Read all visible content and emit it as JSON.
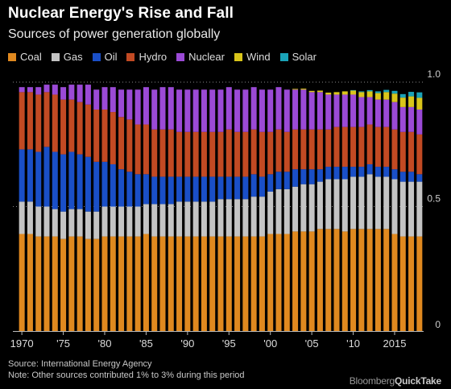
{
  "header": {
    "title": "Nuclear Energy's Rise and Fall",
    "subtitle": "Sources of power generation globally"
  },
  "footer": {
    "source": "Source: International Energy Agency",
    "note": "Note: Other sources contributed 1% to 3% during this period",
    "logo": "BloombergQuickTake"
  },
  "colors": {
    "Coal": "#e0891f",
    "Gas": "#c4c4c4",
    "Oil": "#1a4fc7",
    "Hydro": "#c24a23",
    "Nuclear": "#9b4ad6",
    "Wind": "#d9c51a",
    "Solar": "#1aa3b8"
  },
  "chart_data": {
    "type": "bar",
    "stacked": true,
    "categories": [
      1970,
      1971,
      1972,
      1973,
      1974,
      1975,
      1976,
      1977,
      1978,
      1979,
      1980,
      1981,
      1982,
      1983,
      1984,
      1985,
      1986,
      1987,
      1988,
      1989,
      1990,
      1991,
      1992,
      1993,
      1994,
      1995,
      1996,
      1997,
      1998,
      1999,
      2000,
      2001,
      2002,
      2003,
      2004,
      2005,
      2006,
      2007,
      2008,
      2009,
      2010,
      2011,
      2012,
      2013,
      2014,
      2015,
      2016,
      2017,
      2018
    ],
    "x_tick_labels": [
      "1970",
      "'75",
      "'80",
      "'85",
      "'90",
      "'95",
      "'00",
      "'05",
      "'10",
      "2015"
    ],
    "x_tick_years": [
      1970,
      1975,
      1980,
      1985,
      1990,
      1995,
      2000,
      2005,
      2010,
      2015
    ],
    "y_ticks": [
      0,
      0.5,
      1.0
    ],
    "y_tick_labels": [
      "0",
      "0.5",
      "1.0"
    ],
    "ylim": [
      0,
      1.0
    ],
    "series": [
      {
        "name": "Coal",
        "values": [
          0.39,
          0.39,
          0.38,
          0.38,
          0.38,
          0.37,
          0.38,
          0.38,
          0.37,
          0.37,
          0.38,
          0.38,
          0.38,
          0.38,
          0.38,
          0.39,
          0.38,
          0.38,
          0.38,
          0.38,
          0.38,
          0.38,
          0.38,
          0.38,
          0.38,
          0.38,
          0.38,
          0.38,
          0.38,
          0.38,
          0.39,
          0.39,
          0.39,
          0.4,
          0.4,
          0.4,
          0.41,
          0.41,
          0.41,
          0.4,
          0.41,
          0.41,
          0.41,
          0.41,
          0.41,
          0.39,
          0.38,
          0.38,
          0.38
        ]
      },
      {
        "name": "Gas",
        "values": [
          0.13,
          0.13,
          0.12,
          0.12,
          0.11,
          0.11,
          0.11,
          0.11,
          0.11,
          0.11,
          0.12,
          0.12,
          0.12,
          0.12,
          0.12,
          0.12,
          0.13,
          0.13,
          0.13,
          0.14,
          0.14,
          0.14,
          0.14,
          0.14,
          0.15,
          0.15,
          0.15,
          0.15,
          0.16,
          0.16,
          0.17,
          0.18,
          0.18,
          0.18,
          0.19,
          0.19,
          0.19,
          0.2,
          0.2,
          0.21,
          0.21,
          0.21,
          0.22,
          0.21,
          0.21,
          0.22,
          0.22,
          0.22,
          0.22
        ]
      },
      {
        "name": "Oil",
        "values": [
          0.21,
          0.21,
          0.22,
          0.24,
          0.23,
          0.23,
          0.23,
          0.22,
          0.22,
          0.2,
          0.18,
          0.17,
          0.15,
          0.14,
          0.13,
          0.12,
          0.11,
          0.11,
          0.11,
          0.1,
          0.1,
          0.1,
          0.1,
          0.1,
          0.09,
          0.09,
          0.09,
          0.09,
          0.09,
          0.08,
          0.07,
          0.07,
          0.07,
          0.07,
          0.06,
          0.06,
          0.05,
          0.05,
          0.05,
          0.05,
          0.04,
          0.04,
          0.04,
          0.04,
          0.04,
          0.04,
          0.04,
          0.04,
          0.03
        ]
      },
      {
        "name": "Hydro",
        "values": [
          0.23,
          0.23,
          0.23,
          0.22,
          0.23,
          0.22,
          0.21,
          0.21,
          0.21,
          0.21,
          0.21,
          0.21,
          0.21,
          0.21,
          0.2,
          0.2,
          0.19,
          0.19,
          0.19,
          0.18,
          0.18,
          0.18,
          0.18,
          0.18,
          0.18,
          0.19,
          0.18,
          0.18,
          0.18,
          0.18,
          0.17,
          0.17,
          0.16,
          0.16,
          0.16,
          0.16,
          0.16,
          0.15,
          0.16,
          0.16,
          0.16,
          0.16,
          0.16,
          0.16,
          0.16,
          0.16,
          0.16,
          0.16,
          0.16
        ]
      },
      {
        "name": "Nuclear",
        "values": [
          0.02,
          0.02,
          0.03,
          0.03,
          0.04,
          0.05,
          0.06,
          0.07,
          0.08,
          0.08,
          0.09,
          0.1,
          0.11,
          0.12,
          0.14,
          0.15,
          0.16,
          0.17,
          0.17,
          0.17,
          0.17,
          0.17,
          0.17,
          0.17,
          0.17,
          0.17,
          0.17,
          0.17,
          0.17,
          0.17,
          0.17,
          0.17,
          0.17,
          0.16,
          0.16,
          0.15,
          0.15,
          0.14,
          0.13,
          0.13,
          0.13,
          0.12,
          0.11,
          0.11,
          0.11,
          0.11,
          0.1,
          0.1,
          0.1
        ]
      },
      {
        "name": "Wind",
        "values": [
          0,
          0,
          0,
          0,
          0,
          0,
          0,
          0,
          0,
          0,
          0,
          0,
          0,
          0,
          0,
          0,
          0,
          0,
          0,
          0,
          0,
          0,
          0,
          0,
          0,
          0,
          0,
          0,
          0,
          0,
          0,
          0,
          0,
          0.003,
          0.004,
          0.005,
          0.006,
          0.008,
          0.01,
          0.013,
          0.016,
          0.02,
          0.023,
          0.026,
          0.03,
          0.034,
          0.038,
          0.043,
          0.047
        ]
      },
      {
        "name": "Solar",
        "values": [
          0,
          0,
          0,
          0,
          0,
          0,
          0,
          0,
          0,
          0,
          0,
          0,
          0,
          0,
          0,
          0,
          0,
          0,
          0,
          0,
          0,
          0,
          0,
          0,
          0,
          0,
          0,
          0,
          0,
          0,
          0,
          0,
          0,
          0,
          0,
          0,
          0,
          0,
          0,
          0,
          0.002,
          0.003,
          0.005,
          0.007,
          0.009,
          0.011,
          0.014,
          0.018,
          0.022
        ]
      }
    ]
  }
}
